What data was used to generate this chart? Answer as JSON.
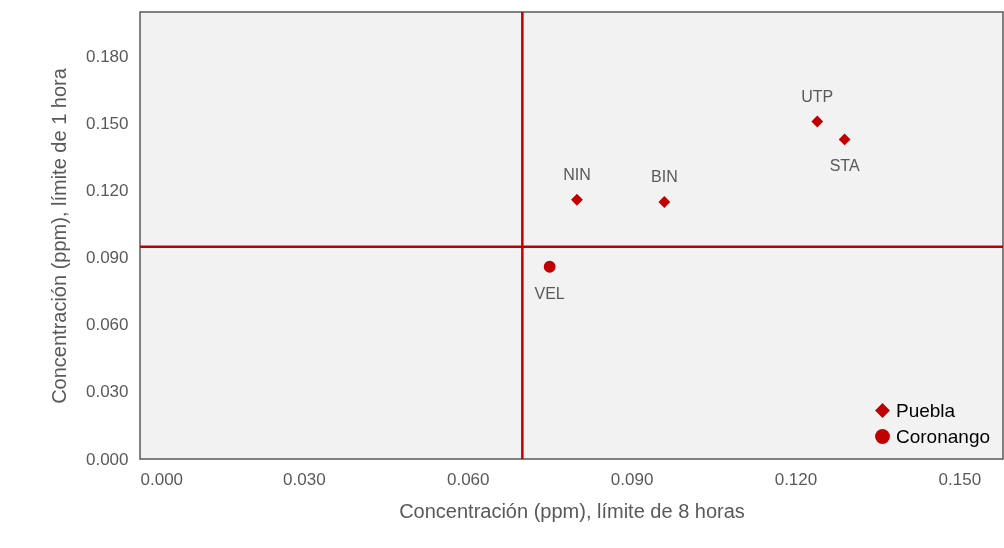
{
  "chart_data": {
    "type": "scatter",
    "xlabel": "Concentración (ppm),  límite de 8 horas",
    "ylabel": "Concentración (ppm),  límite de 1 hora",
    "xlim": [
      0,
      0.158
    ],
    "ylim": [
      0,
      0.2
    ],
    "xticks": [
      {
        "value": 0,
        "label": "0.000"
      },
      {
        "value": 0.03,
        "label": "0.030"
      },
      {
        "value": 0.06,
        "label": "0.060"
      },
      {
        "value": 0.09,
        "label": "0.090"
      },
      {
        "value": 0.12,
        "label": "0.120"
      },
      {
        "value": 0.15,
        "label": "0.150"
      }
    ],
    "yticks": [
      {
        "value": 0,
        "label": "0.000"
      },
      {
        "value": 0.03,
        "label": "0.030"
      },
      {
        "value": 0.06,
        "label": "0.060"
      },
      {
        "value": 0.09,
        "label": "0.090"
      },
      {
        "value": 0.12,
        "label": "0.120"
      },
      {
        "value": 0.15,
        "label": "0.150"
      },
      {
        "value": 0.18,
        "label": "0.180"
      }
    ],
    "grid": false,
    "legend": "bottom right",
    "series": [
      {
        "name": "Puebla",
        "color": "#c00000",
        "marker": "diamond",
        "x": [
          0.124,
          0.129,
          0.08,
          0.096
        ],
        "values": [
          0.151,
          0.143,
          0.116,
          0.115
        ]
      },
      {
        "name": "Coronango",
        "color": "#c00000",
        "marker": "circle",
        "x": [
          0.075
        ],
        "values": [
          0.086
        ]
      }
    ],
    "annotations": [
      {
        "text": "UTP",
        "x": 0.124,
        "y": 0.151
      },
      {
        "text": "STA",
        "x": 0.129,
        "y": 0.143
      },
      {
        "text": "NIN",
        "x": 0.08,
        "y": 0.116
      },
      {
        "text": "BIN",
        "x": 0.096,
        "y": 0.115
      },
      {
        "text": "VEL",
        "x": 0.075,
        "y": 0.086
      }
    ],
    "ref_lines": [
      {
        "axis": "x",
        "value": 0.07,
        "color": "#c00000"
      },
      {
        "axis": "y",
        "value": 0.095,
        "color": "#c00000"
      }
    ]
  }
}
